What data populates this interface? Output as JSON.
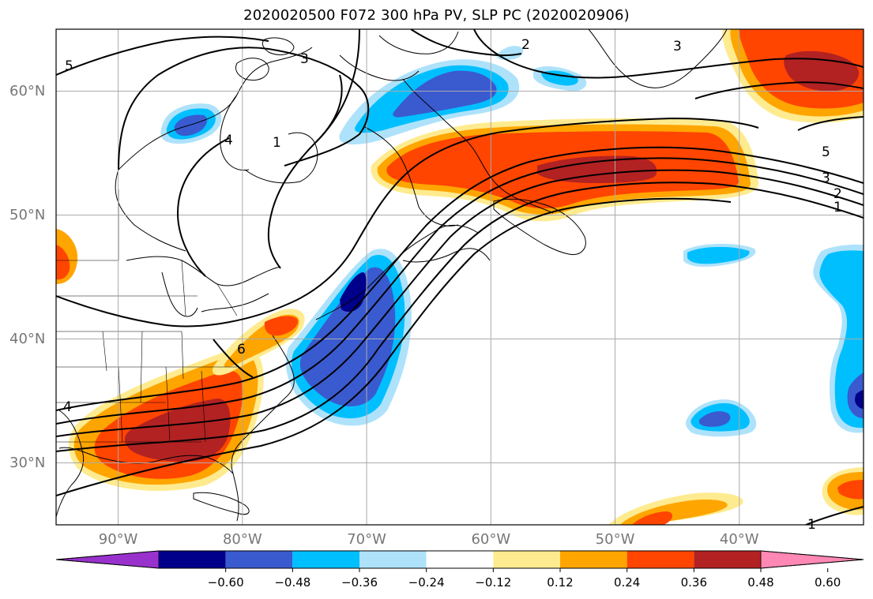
{
  "title": "2020020500 F072 300 hPa PV, SLP PC (2020020906)",
  "map": {
    "projection": "equirectangular",
    "extent": {
      "lon_min": -95,
      "lon_max": -30,
      "lat_min": 25,
      "lat_max": 65
    },
    "lat_ticks": [
      {
        "value": 60,
        "label": "60°N"
      },
      {
        "value": 50,
        "label": "50°N"
      },
      {
        "value": 40,
        "label": "40°N"
      },
      {
        "value": 30,
        "label": "30°N"
      }
    ],
    "lon_ticks": [
      {
        "value": -90,
        "label": "90°W"
      },
      {
        "value": -80,
        "label": "80°W"
      },
      {
        "value": -70,
        "label": "70°W"
      },
      {
        "value": -60,
        "label": "60°W"
      },
      {
        "value": -50,
        "label": "50°W"
      },
      {
        "value": -40,
        "label": "40°W"
      }
    ],
    "grid": true,
    "contour_labels": [
      "5",
      "4",
      "3",
      "2",
      "1",
      "6",
      "5",
      "3",
      "2",
      "1",
      "4",
      "3",
      "1"
    ]
  },
  "colorbar": {
    "orientation": "horizontal",
    "extend": "both",
    "levels": [
      -0.6,
      -0.48,
      -0.36,
      -0.24,
      -0.12,
      0.12,
      0.24,
      0.36,
      0.48,
      0.6
    ],
    "tick_labels": [
      "−0.60",
      "−0.48",
      "−0.36",
      "−0.24",
      "−0.12",
      "0.12",
      "0.24",
      "0.36",
      "0.48",
      "0.60"
    ],
    "colors": [
      "#9932cc",
      "#00008b",
      "#3a5ad0",
      "#00bfff",
      "#aee2fb",
      "#ffffff",
      "#ffeb8f",
      "#ffa500",
      "#ff4500",
      "#b22222",
      "#ff88b4"
    ]
  },
  "colors": {
    "grid": "#aaaaaa",
    "coast": "#000000",
    "contour": "#000000"
  }
}
